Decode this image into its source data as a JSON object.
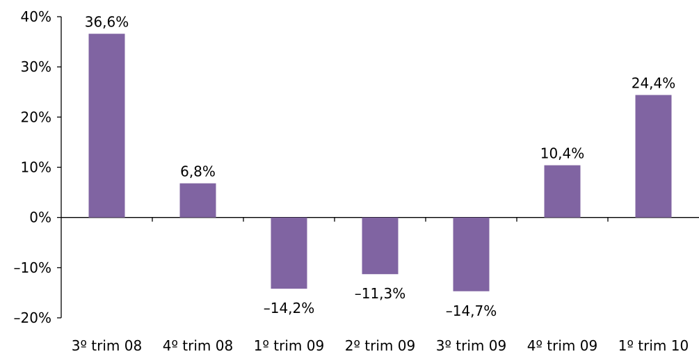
{
  "chart_data": {
    "type": "bar",
    "categories": [
      "3º trim 08",
      "4º trim 08",
      "1º trim 09",
      "2º trim 09",
      "3º trim 09",
      "4º trim 09",
      "1º trim 10"
    ],
    "values": [
      36.6,
      6.8,
      -14.2,
      -11.3,
      -14.7,
      10.4,
      24.4
    ],
    "data_labels": [
      "36,6%",
      "6,8%",
      "–14,2%",
      "–11,3%",
      "–14,7%",
      "10,4%",
      "24,4%"
    ],
    "y_ticks": [
      40,
      30,
      20,
      10,
      0,
      -10,
      -20
    ],
    "y_tick_labels": [
      "40%",
      "30%",
      "20%",
      "10%",
      "0%",
      "–10%",
      "–20%"
    ],
    "ylim": [
      -20,
      40
    ],
    "bar_color": "#8064A2",
    "grid": false,
    "legend": "none"
  }
}
